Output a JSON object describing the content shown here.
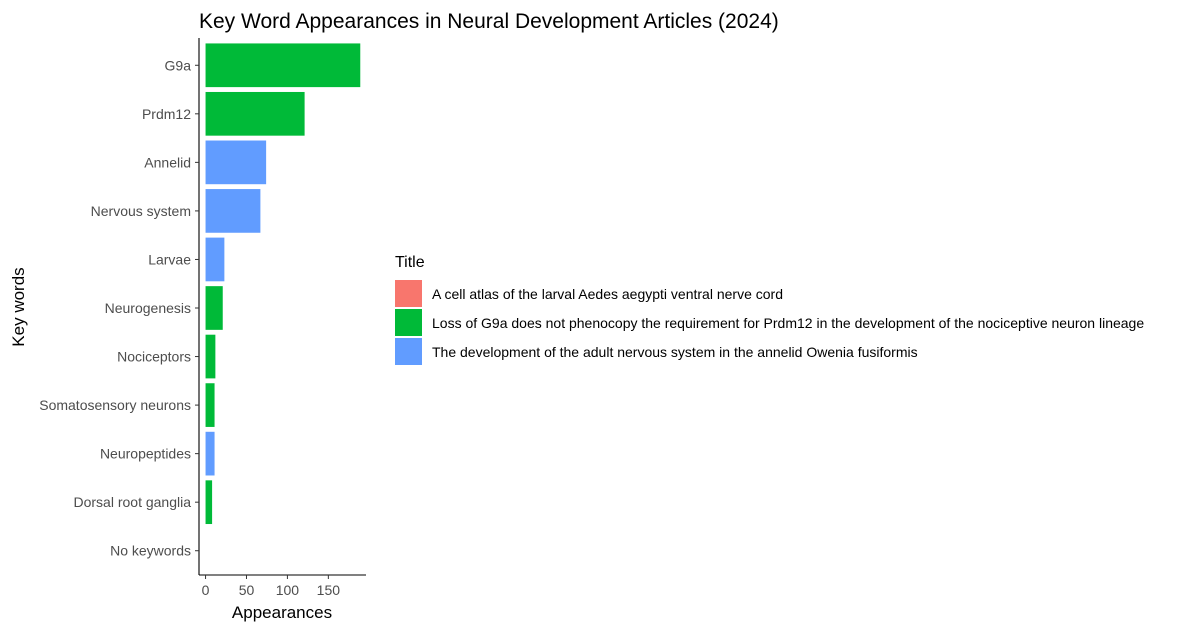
{
  "chart_data": {
    "type": "bar",
    "orientation": "horizontal",
    "title": "Key Word Appearances in Neural Development Articles (2024)",
    "xlabel": "Appearances",
    "ylabel": "Key words",
    "x_ticks": [
      0,
      50,
      100,
      150
    ],
    "xlim": [
      -8,
      196
    ],
    "categories": [
      "G9a",
      "Prdm12",
      "Annelid",
      "Nervous system",
      "Larvae",
      "Neurogenesis",
      "Nociceptors",
      "Somatosensory neurons",
      "Neuropeptides",
      "Dorsal root ganglia",
      "No keywords"
    ],
    "values": [
      189,
      121,
      74,
      67,
      23,
      21,
      12,
      11,
      11,
      8,
      0
    ],
    "bar_series_index": [
      1,
      1,
      2,
      2,
      2,
      1,
      1,
      1,
      2,
      1,
      0
    ],
    "series": [
      {
        "name": "A cell atlas of the larval Aedes aegypti ventral nerve cord",
        "color": "#F8766D"
      },
      {
        "name": "Loss of G9a does not phenocopy the requirement for Prdm12 in the development of the nociceptive neuron lineage",
        "color": "#00BA38"
      },
      {
        "name": "The development of the adult nervous system in the annelid Owenia fusiformis",
        "color": "#619CFF"
      }
    ],
    "legend": {
      "title": "Title",
      "position": "right"
    },
    "grid": false
  }
}
